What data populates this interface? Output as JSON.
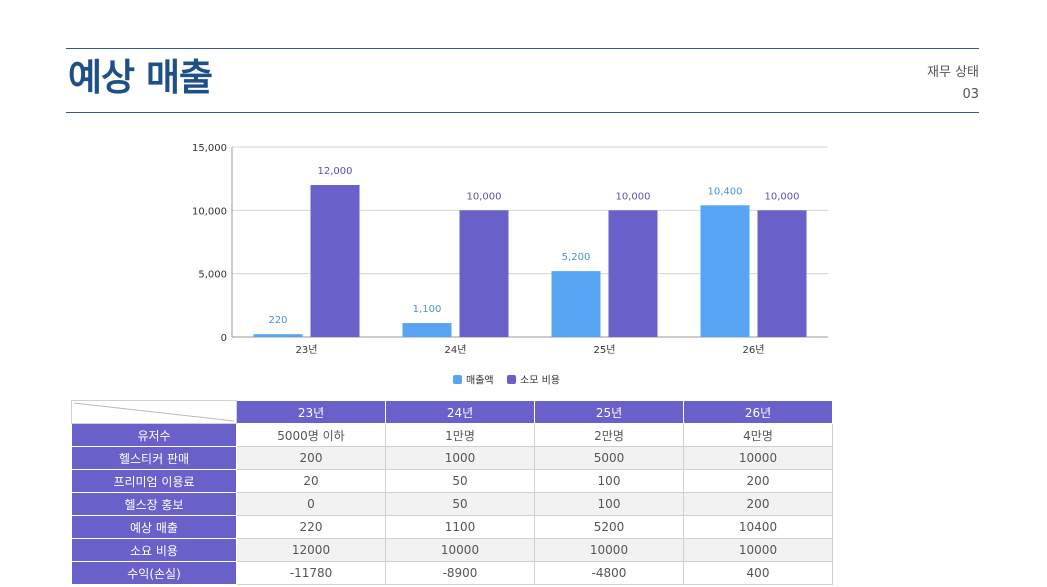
{
  "header": {
    "title": "예상 매출",
    "section": "재무 상태",
    "page_number": "03"
  },
  "colors": {
    "sales": "#57a5f2",
    "cost": "#6a60c9",
    "rule": "#2e5a8e",
    "title": "#1d4f88"
  },
  "chart_data": {
    "type": "bar",
    "categories": [
      "23년",
      "24년",
      "25년",
      "26년"
    ],
    "series": [
      {
        "name": "매출액",
        "values": [
          220,
          1100,
          5200,
          10400
        ],
        "labels": [
          "220",
          "1,100",
          "5,200",
          "10,400"
        ]
      },
      {
        "name": "소모 비용",
        "values": [
          12000,
          10000,
          10000,
          10000
        ],
        "labels": [
          "12,000",
          "10,000",
          "10,000",
          "10,000"
        ]
      }
    ],
    "ylim": [
      0,
      15000
    ],
    "yticks": [
      0,
      5000,
      10000,
      15000
    ],
    "ytick_labels": [
      "0",
      "5,000",
      "10,000",
      "15,000"
    ],
    "grid": true,
    "legend_position": "bottom"
  },
  "table": {
    "columns": [
      "23년",
      "24년",
      "25년",
      "26년"
    ],
    "rows": [
      {
        "label": "유저수",
        "values": [
          "5000명 이하",
          "1만명",
          "2만명",
          "4만명"
        ]
      },
      {
        "label": "헬스티커 판매",
        "values": [
          "200",
          "1000",
          "5000",
          "10000"
        ]
      },
      {
        "label": "프리미엄 이용료",
        "values": [
          "20",
          "50",
          "100",
          "200"
        ]
      },
      {
        "label": "헬스장 홍보",
        "values": [
          "0",
          "50",
          "100",
          "200"
        ]
      },
      {
        "label": "예상 매출",
        "values": [
          "220",
          "1100",
          "5200",
          "10400"
        ]
      },
      {
        "label": "소요 비용",
        "values": [
          "12000",
          "10000",
          "10000",
          "10000"
        ]
      },
      {
        "label": "수익(손실)",
        "values": [
          "-11780",
          "-8900",
          "-4800",
          "400"
        ]
      }
    ]
  }
}
